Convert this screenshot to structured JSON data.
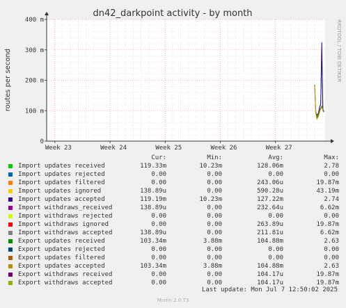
{
  "chart_data": {
    "type": "line",
    "title": "dn42_darkpoint activity - by month",
    "ylabel": "routes per second",
    "side_text": "RRDTOOL / TOBI OETIKER",
    "ylim": [
      0,
      400
    ],
    "y_ticks": [
      {
        "value": 0,
        "label": "0"
      },
      {
        "value": 100,
        "label": "100 m"
      },
      {
        "value": 200,
        "label": "200 m"
      },
      {
        "value": 300,
        "label": "300 m"
      },
      {
        "value": 400,
        "label": "400 m"
      }
    ],
    "x_ticks": [
      "Week 23",
      "Week 24",
      "Week 25",
      "Week 26",
      "Week 27"
    ],
    "xlim": [
      0,
      5.05
    ],
    "series": [
      {
        "name": "Import updates received",
        "color": "#00cc00",
        "points": [
          [
            4.88,
            95
          ],
          [
            4.9,
            80
          ],
          [
            4.93,
            90
          ],
          [
            4.95,
            110
          ],
          [
            4.97,
            120
          ],
          [
            4.99,
            300
          ],
          [
            5.01,
            100
          ],
          [
            5.03,
            95
          ]
        ]
      },
      {
        "name": "Import updates accepted",
        "color": "#330099",
        "points": [
          [
            4.88,
            97
          ],
          [
            4.9,
            85
          ],
          [
            4.93,
            92
          ],
          [
            4.95,
            112
          ],
          [
            4.97,
            122
          ],
          [
            4.99,
            325
          ],
          [
            5.01,
            105
          ],
          [
            5.03,
            97
          ]
        ]
      },
      {
        "name": "Export updates received",
        "color": "#006600",
        "points": [
          [
            4.86,
            185
          ],
          [
            4.88,
            100
          ],
          [
            4.9,
            75
          ],
          [
            4.93,
            85
          ],
          [
            4.96,
            105
          ],
          [
            4.99,
            115
          ],
          [
            5.02,
            100
          ]
        ]
      },
      {
        "name": "Export updates accepted",
        "color": "#cc9900",
        "points": [
          [
            4.86,
            180
          ],
          [
            4.88,
            95
          ],
          [
            4.9,
            72
          ],
          [
            4.93,
            82
          ],
          [
            4.96,
            102
          ],
          [
            4.99,
            112
          ],
          [
            5.02,
            97
          ]
        ]
      }
    ],
    "legend": {
      "headers": [
        "Cur:",
        "Min:",
        "Avg:",
        "Max:"
      ],
      "rows": [
        {
          "name": "Import updates received",
          "color": "#00cc00",
          "cur": "119.33m",
          "min": "10.23m",
          "avg": "128.06m",
          "max": "2.78"
        },
        {
          "name": "Import updates rejected",
          "color": "#0066b3",
          "cur": "0.00",
          "min": "0.00",
          "avg": "0.00",
          "max": "0.00"
        },
        {
          "name": "Import updates filtered",
          "color": "#ff8000",
          "cur": "0.00",
          "min": "0.00",
          "avg": "243.06u",
          "max": "19.87m"
        },
        {
          "name": "Import updates ignored",
          "color": "#ffcc00",
          "cur": "138.89u",
          "min": "0.00",
          "avg": "590.28u",
          "max": "43.19m"
        },
        {
          "name": "Import updates accepted",
          "color": "#330099",
          "cur": "119.19m",
          "min": "10.23m",
          "avg": "127.22m",
          "max": "2.74"
        },
        {
          "name": "Import withdraws_received",
          "color": "#990099",
          "cur": "138.89u",
          "min": "0.00",
          "avg": "232.64u",
          "max": "6.62m"
        },
        {
          "name": "Import withdraws rejected",
          "color": "#ccff00",
          "cur": "0.00",
          "min": "0.00",
          "avg": "0.00",
          "max": "0.00"
        },
        {
          "name": "Import withdraws ignored",
          "color": "#ff0000",
          "cur": "0.00",
          "min": "0.00",
          "avg": "263.89u",
          "max": "19.87m"
        },
        {
          "name": "Import withdraws accepted",
          "color": "#808080",
          "cur": "138.89u",
          "min": "0.00",
          "avg": "211.81u",
          "max": "6.62m"
        },
        {
          "name": "Export updates received",
          "color": "#008f00",
          "cur": "103.34m",
          "min": "3.88m",
          "avg": "104.88m",
          "max": "2.63"
        },
        {
          "name": "Export updates rejected",
          "color": "#00487d",
          "cur": "0.00",
          "min": "0.00",
          "avg": "0.00",
          "max": "0.00"
        },
        {
          "name": "Export updates filtered",
          "color": "#b35a00",
          "cur": "0.00",
          "min": "0.00",
          "avg": "0.00",
          "max": "0.00"
        },
        {
          "name": "Export updates accepted",
          "color": "#b38f00",
          "cur": "103.34m",
          "min": "3.88m",
          "avg": "104.88m",
          "max": "2.63"
        },
        {
          "name": "Export withdraws received",
          "color": "#6b006b",
          "cur": "0.00",
          "min": "0.00",
          "avg": "104.17u",
          "max": "19.87m"
        },
        {
          "name": "Export withdraws accepted",
          "color": "#8fb300",
          "cur": "0.00",
          "min": "0.00",
          "avg": "104.17u",
          "max": "19.87m"
        }
      ]
    }
  },
  "footer": {
    "last_update": "Last update: Mon Jul  7 12:50:02 2025",
    "munin": "Munin 2.0.73"
  }
}
